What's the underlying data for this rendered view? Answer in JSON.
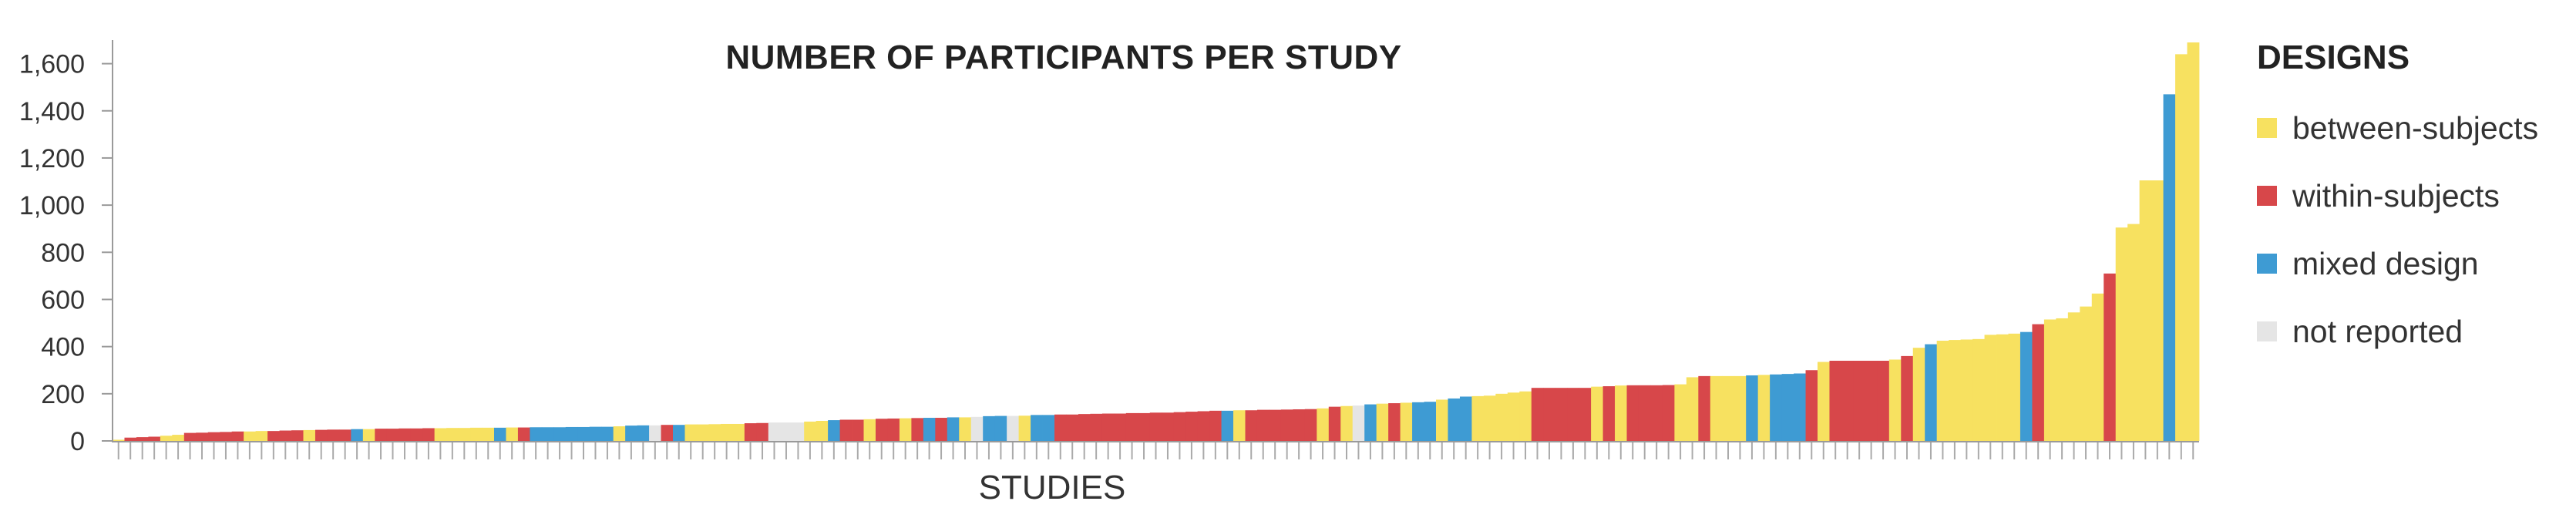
{
  "chart_data": {
    "type": "bar",
    "title": "NUMBER OF PARTICIPANTS PER STUDY",
    "xlabel": "STUDIES",
    "ylabel": "",
    "ylim": [
      0,
      1700
    ],
    "yticks": [
      0,
      200,
      400,
      600,
      800,
      1000,
      1200,
      1400,
      1600
    ],
    "ytick_labels": [
      "0",
      "200",
      "400",
      "600",
      "800",
      "1,000",
      "1,200",
      "1,400",
      "1,600"
    ],
    "legend": {
      "title": "DESIGNS",
      "placement": "right",
      "entries": [
        {
          "key": "b",
          "label": "between-subjects",
          "color": "#f7e160"
        },
        {
          "key": "w",
          "label": "within-subjects",
          "color": "#d7474a"
        },
        {
          "key": "m",
          "label": "mixed design",
          "color": "#3e9bd3"
        },
        {
          "key": "n",
          "label": "not reported",
          "color": "#e5e5e5"
        }
      ]
    },
    "bars": [
      {
        "design": "b",
        "value": 5
      },
      {
        "design": "w",
        "value": 14
      },
      {
        "design": "w",
        "value": 16
      },
      {
        "design": "w",
        "value": 18
      },
      {
        "design": "b",
        "value": 22
      },
      {
        "design": "b",
        "value": 26
      },
      {
        "design": "w",
        "value": 34
      },
      {
        "design": "w",
        "value": 35
      },
      {
        "design": "w",
        "value": 37
      },
      {
        "design": "w",
        "value": 38
      },
      {
        "design": "w",
        "value": 40
      },
      {
        "design": "b",
        "value": 40
      },
      {
        "design": "b",
        "value": 42
      },
      {
        "design": "w",
        "value": 42
      },
      {
        "design": "w",
        "value": 44
      },
      {
        "design": "w",
        "value": 45
      },
      {
        "design": "b",
        "value": 46
      },
      {
        "design": "w",
        "value": 47
      },
      {
        "design": "w",
        "value": 48
      },
      {
        "design": "w",
        "value": 48
      },
      {
        "design": "m",
        "value": 50
      },
      {
        "design": "b",
        "value": 50
      },
      {
        "design": "w",
        "value": 52
      },
      {
        "design": "w",
        "value": 52
      },
      {
        "design": "w",
        "value": 53
      },
      {
        "design": "w",
        "value": 53
      },
      {
        "design": "w",
        "value": 54
      },
      {
        "design": "b",
        "value": 54
      },
      {
        "design": "b",
        "value": 55
      },
      {
        "design": "b",
        "value": 55
      },
      {
        "design": "b",
        "value": 56
      },
      {
        "design": "b",
        "value": 56
      },
      {
        "design": "m",
        "value": 56
      },
      {
        "design": "b",
        "value": 57
      },
      {
        "design": "w",
        "value": 57
      },
      {
        "design": "m",
        "value": 58
      },
      {
        "design": "m",
        "value": 58
      },
      {
        "design": "m",
        "value": 58
      },
      {
        "design": "m",
        "value": 59
      },
      {
        "design": "m",
        "value": 59
      },
      {
        "design": "m",
        "value": 60
      },
      {
        "design": "m",
        "value": 60
      },
      {
        "design": "b",
        "value": 62
      },
      {
        "design": "m",
        "value": 65
      },
      {
        "design": "m",
        "value": 66
      },
      {
        "design": "n",
        "value": 66
      },
      {
        "design": "w",
        "value": 68
      },
      {
        "design": "m",
        "value": 68
      },
      {
        "design": "b",
        "value": 70
      },
      {
        "design": "b",
        "value": 70
      },
      {
        "design": "b",
        "value": 71
      },
      {
        "design": "b",
        "value": 72
      },
      {
        "design": "b",
        "value": 72
      },
      {
        "design": "w",
        "value": 75
      },
      {
        "design": "w",
        "value": 76
      },
      {
        "design": "n",
        "value": 78
      },
      {
        "design": "n",
        "value": 78
      },
      {
        "design": "n",
        "value": 78
      },
      {
        "design": "b",
        "value": 82
      },
      {
        "design": "b",
        "value": 85
      },
      {
        "design": "m",
        "value": 88
      },
      {
        "design": "w",
        "value": 90
      },
      {
        "design": "w",
        "value": 90
      },
      {
        "design": "b",
        "value": 92
      },
      {
        "design": "w",
        "value": 94
      },
      {
        "design": "w",
        "value": 95
      },
      {
        "design": "b",
        "value": 96
      },
      {
        "design": "w",
        "value": 97
      },
      {
        "design": "m",
        "value": 98
      },
      {
        "design": "w",
        "value": 98
      },
      {
        "design": "m",
        "value": 100
      },
      {
        "design": "b",
        "value": 100
      },
      {
        "design": "n",
        "value": 102
      },
      {
        "design": "m",
        "value": 105
      },
      {
        "design": "m",
        "value": 106
      },
      {
        "design": "n",
        "value": 106
      },
      {
        "design": "b",
        "value": 107
      },
      {
        "design": "m",
        "value": 110
      },
      {
        "design": "m",
        "value": 110
      },
      {
        "design": "w",
        "value": 112
      },
      {
        "design": "w",
        "value": 112
      },
      {
        "design": "w",
        "value": 114
      },
      {
        "design": "w",
        "value": 115
      },
      {
        "design": "w",
        "value": 116
      },
      {
        "design": "w",
        "value": 116
      },
      {
        "design": "w",
        "value": 118
      },
      {
        "design": "w",
        "value": 118
      },
      {
        "design": "w",
        "value": 120
      },
      {
        "design": "w",
        "value": 120
      },
      {
        "design": "w",
        "value": 122
      },
      {
        "design": "w",
        "value": 124
      },
      {
        "design": "w",
        "value": 126
      },
      {
        "design": "w",
        "value": 128
      },
      {
        "design": "m",
        "value": 128
      },
      {
        "design": "b",
        "value": 130
      },
      {
        "design": "w",
        "value": 130
      },
      {
        "design": "w",
        "value": 132
      },
      {
        "design": "w",
        "value": 132
      },
      {
        "design": "w",
        "value": 133
      },
      {
        "design": "w",
        "value": 134
      },
      {
        "design": "w",
        "value": 135
      },
      {
        "design": "b",
        "value": 138
      },
      {
        "design": "w",
        "value": 145
      },
      {
        "design": "b",
        "value": 148
      },
      {
        "design": "n",
        "value": 150
      },
      {
        "design": "m",
        "value": 155
      },
      {
        "design": "b",
        "value": 158
      },
      {
        "design": "w",
        "value": 160
      },
      {
        "design": "b",
        "value": 162
      },
      {
        "design": "m",
        "value": 164
      },
      {
        "design": "m",
        "value": 166
      },
      {
        "design": "b",
        "value": 175
      },
      {
        "design": "m",
        "value": 180
      },
      {
        "design": "m",
        "value": 188
      },
      {
        "design": "b",
        "value": 190
      },
      {
        "design": "b",
        "value": 192
      },
      {
        "design": "b",
        "value": 200
      },
      {
        "design": "b",
        "value": 205
      },
      {
        "design": "b",
        "value": 210
      },
      {
        "design": "w",
        "value": 225
      },
      {
        "design": "w",
        "value": 225
      },
      {
        "design": "w",
        "value": 225
      },
      {
        "design": "w",
        "value": 225
      },
      {
        "design": "w",
        "value": 225
      },
      {
        "design": "b",
        "value": 230
      },
      {
        "design": "w",
        "value": 232
      },
      {
        "design": "b",
        "value": 235
      },
      {
        "design": "w",
        "value": 236
      },
      {
        "design": "w",
        "value": 236
      },
      {
        "design": "w",
        "value": 236
      },
      {
        "design": "w",
        "value": 237
      },
      {
        "design": "b",
        "value": 240
      },
      {
        "design": "b",
        "value": 270
      },
      {
        "design": "w",
        "value": 275
      },
      {
        "design": "b",
        "value": 275
      },
      {
        "design": "b",
        "value": 275
      },
      {
        "design": "b",
        "value": 275
      },
      {
        "design": "m",
        "value": 278
      },
      {
        "design": "b",
        "value": 280
      },
      {
        "design": "m",
        "value": 282
      },
      {
        "design": "m",
        "value": 284
      },
      {
        "design": "m",
        "value": 286
      },
      {
        "design": "w",
        "value": 300
      },
      {
        "design": "b",
        "value": 335
      },
      {
        "design": "w",
        "value": 340
      },
      {
        "design": "w",
        "value": 340
      },
      {
        "design": "w",
        "value": 340
      },
      {
        "design": "w",
        "value": 340
      },
      {
        "design": "w",
        "value": 340
      },
      {
        "design": "b",
        "value": 345
      },
      {
        "design": "w",
        "value": 360
      },
      {
        "design": "b",
        "value": 395
      },
      {
        "design": "m",
        "value": 410
      },
      {
        "design": "b",
        "value": 425
      },
      {
        "design": "b",
        "value": 428
      },
      {
        "design": "b",
        "value": 430
      },
      {
        "design": "b",
        "value": 432
      },
      {
        "design": "b",
        "value": 450
      },
      {
        "design": "b",
        "value": 452
      },
      {
        "design": "b",
        "value": 455
      },
      {
        "design": "m",
        "value": 462
      },
      {
        "design": "w",
        "value": 495
      },
      {
        "design": "b",
        "value": 515
      },
      {
        "design": "b",
        "value": 520
      },
      {
        "design": "b",
        "value": 545
      },
      {
        "design": "b",
        "value": 570
      },
      {
        "design": "b",
        "value": 625
      },
      {
        "design": "w",
        "value": 710
      },
      {
        "design": "b",
        "value": 905
      },
      {
        "design": "b",
        "value": 920
      },
      {
        "design": "b",
        "value": 1105
      },
      {
        "design": "b",
        "value": 1105
      },
      {
        "design": "m",
        "value": 1470
      },
      {
        "design": "b",
        "value": 1640
      },
      {
        "design": "b",
        "value": 1690
      }
    ]
  }
}
